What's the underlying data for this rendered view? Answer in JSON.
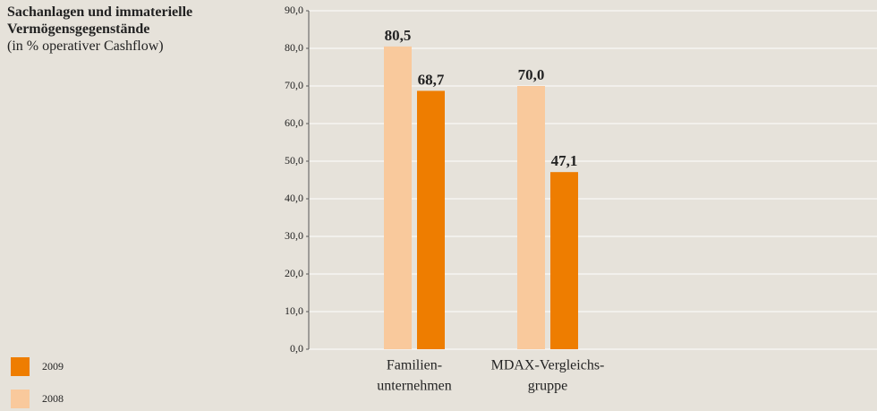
{
  "chart_data": {
    "type": "bar",
    "title": "Sachanlagen und immaterielle Vermögensgegenstände",
    "subtitle": "(in % operativer Cashflow)",
    "categories": [
      [
        "Familien-",
        "unternehmen"
      ],
      [
        "MDAX-Vergleichs-",
        "gruppe"
      ]
    ],
    "series": [
      {
        "name": "2008",
        "color": "#f9c99c",
        "values": [
          80.5,
          70.0
        ],
        "value_labels": [
          "80,5",
          "70,0"
        ]
      },
      {
        "name": "2009",
        "color": "#ee7d00",
        "values": [
          68.7,
          47.1
        ],
        "value_labels": [
          "68,7",
          "47,1"
        ]
      }
    ],
    "ylim": [
      0,
      90
    ],
    "yticks": [
      {
        "value": 0,
        "label": "0,0"
      },
      {
        "value": 10,
        "label": "10,0"
      },
      {
        "value": 20,
        "label": "20,0"
      },
      {
        "value": 30,
        "label": "30,0"
      },
      {
        "value": 40,
        "label": "40,0"
      },
      {
        "value": 50,
        "label": "50,0"
      },
      {
        "value": 60,
        "label": "60,0"
      },
      {
        "value": 70,
        "label": "70,0"
      },
      {
        "value": 80,
        "label": "80,0"
      },
      {
        "value": 90,
        "label": "90,0"
      }
    ],
    "grid": true
  }
}
